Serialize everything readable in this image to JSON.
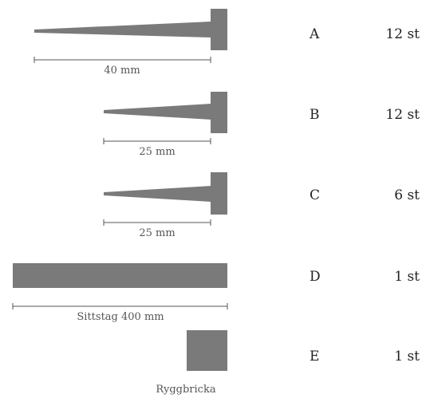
{
  "parts": [
    {
      "id": "A",
      "letter": "A",
      "quantity": "12 st",
      "dimension": "40 mm"
    },
    {
      "id": "B",
      "letter": "B",
      "quantity": "12 st",
      "dimension": "25 mm"
    },
    {
      "id": "C",
      "letter": "C",
      "quantity": "6 st",
      "dimension": "25 mm"
    },
    {
      "id": "D",
      "letter": "D",
      "quantity": "1 st",
      "dimension": "Sittstag 400 mm"
    },
    {
      "id": "E",
      "letter": "E",
      "quantity": "1 st",
      "dimension": "Ryggbricka"
    }
  ],
  "colors": {
    "part_fill": "#7a7a7a",
    "line": "#555555"
  }
}
